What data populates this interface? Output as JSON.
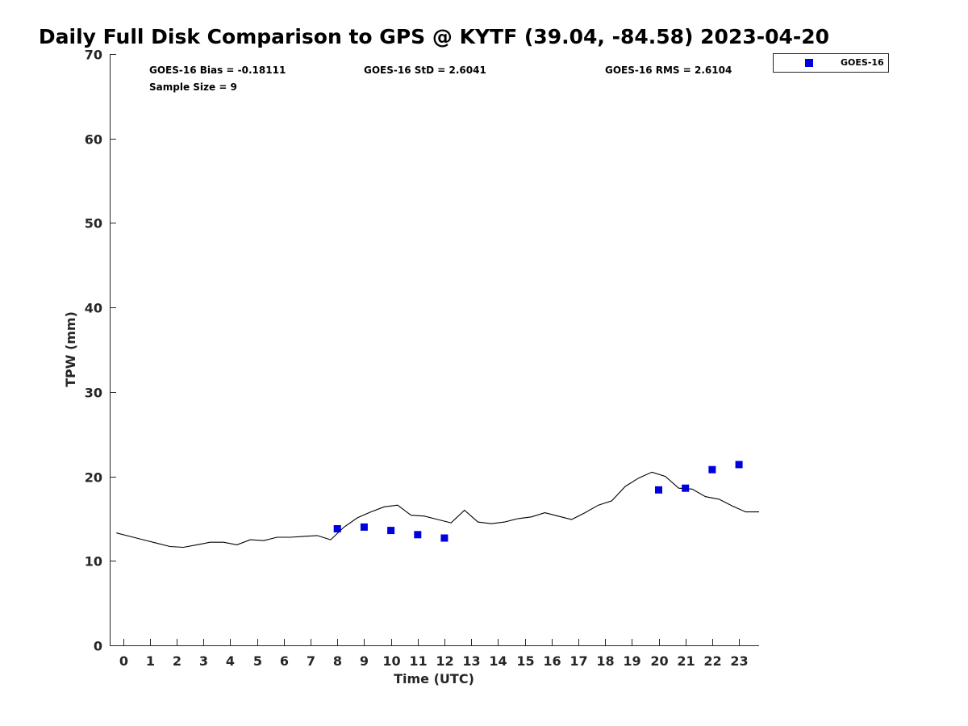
{
  "chart_data": {
    "type": "scatter",
    "title": "Daily Full Disk Comparison to GPS @ KYTF (39.04, -84.58) 2023-04-20",
    "xlabel": "Time (UTC)",
    "ylabel": "TPW (mm)",
    "xlim": [
      -0.5,
      23.75
    ],
    "ylim": [
      0,
      70
    ],
    "x_ticks": [
      0,
      1,
      2,
      3,
      4,
      5,
      6,
      7,
      8,
      9,
      10,
      11,
      12,
      13,
      14,
      15,
      16,
      17,
      18,
      19,
      20,
      21,
      22,
      23
    ],
    "y_ticks": [
      0,
      10,
      20,
      30,
      40,
      50,
      60,
      70
    ],
    "grid": false,
    "legend_position": "outside top-right",
    "stats": {
      "bias": "GOES-16 Bias = -0.18111",
      "std": "GOES-16 StD = 2.6041",
      "rms": "GOES-16 RMS = 2.6104",
      "sample": "Sample Size = 9"
    },
    "series": [
      {
        "name": "GOES-16",
        "type": "scatter",
        "color": "#0000dd",
        "x": [
          8,
          9,
          10,
          11,
          12,
          20,
          21,
          22,
          23
        ],
        "y": [
          13.8,
          14.0,
          13.6,
          13.1,
          12.7,
          18.4,
          18.6,
          20.8,
          21.4
        ]
      },
      {
        "type": "line",
        "color": "#000000",
        "x": [
          -0.25,
          0.25,
          0.75,
          1.25,
          1.75,
          2.25,
          2.75,
          3.25,
          3.75,
          4.25,
          4.75,
          5.25,
          5.75,
          6.25,
          6.75,
          7.25,
          7.75,
          8.25,
          8.75,
          9.25,
          9.75,
          10.25,
          10.75,
          11.25,
          11.75,
          12.25,
          12.75,
          13.25,
          13.75,
          14.25,
          14.75,
          15.25,
          15.75,
          16.25,
          16.75,
          17.25,
          17.75,
          18.25,
          18.75,
          19.25,
          19.75,
          20.25,
          20.75,
          21.25,
          21.75,
          22.25,
          22.75,
          23.25,
          23.75
        ],
        "y": [
          13.3,
          12.9,
          12.5,
          12.1,
          11.7,
          11.6,
          11.9,
          12.2,
          12.2,
          11.9,
          12.5,
          12.4,
          12.8,
          12.8,
          12.9,
          13.0,
          12.5,
          14.0,
          15.1,
          15.8,
          16.4,
          16.6,
          15.4,
          15.3,
          14.9,
          14.5,
          16.0,
          14.6,
          14.4,
          14.6,
          15.0,
          15.2,
          15.7,
          15.3,
          14.9,
          15.7,
          16.6,
          17.1,
          18.8,
          19.8,
          20.5,
          20.0,
          18.6,
          18.5,
          17.6,
          17.3,
          16.5,
          15.8,
          15.8
        ]
      }
    ]
  },
  "legend": {
    "label": "GOES-16"
  }
}
